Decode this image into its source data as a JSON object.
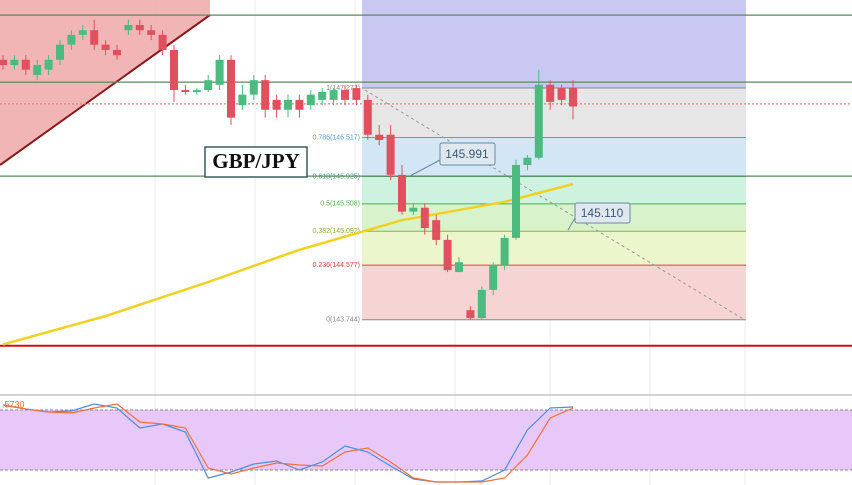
{
  "chart_data": {
    "type": "candlestick",
    "title": "GBP/JPY",
    "annotations": [
      "145.991",
      "145.110"
    ],
    "ylim": [
      142.6,
      148.61
    ],
    "up_color": "#4cbb80",
    "down_color": "#e0505e",
    "candles": {
      "open": [
        147.7,
        147.62,
        147.7,
        147.47,
        147.55,
        147.7,
        147.93,
        148.08,
        148.15,
        147.93,
        147.85,
        148.15,
        148.23,
        148.15,
        148.08,
        147.85,
        147.24,
        147.21,
        147.24,
        147.32,
        147.7,
        147.01,
        147.17,
        147.39,
        147.09,
        146.94,
        147.09,
        147.01,
        147.09,
        147.09,
        147.24,
        147.27,
        147.09,
        146.56,
        146.56,
        145.95,
        145.39,
        145.45,
        145.26,
        144.96,
        144.47,
        143.89,
        143.77,
        144.2,
        144.58,
        144.99,
        146.1,
        146.21,
        147.32,
        147.27,
        147.27
      ],
      "high": [
        147.77,
        147.77,
        147.77,
        147.7,
        147.77,
        148.0,
        148.15,
        148.23,
        148.31,
        148.0,
        147.93,
        148.31,
        148.31,
        148.23,
        148.15,
        147.93,
        147.32,
        147.27,
        147.47,
        147.77,
        147.77,
        147.32,
        147.47,
        147.47,
        147.17,
        147.17,
        147.17,
        147.24,
        147.27,
        147.27,
        147.32,
        147.32,
        147.17,
        146.71,
        146.71,
        146.1,
        145.52,
        145.52,
        145.34,
        145.04,
        144.7,
        143.95,
        144.25,
        144.62,
        145.04,
        146.18,
        146.25,
        147.55,
        147.39,
        147.32,
        147.39
      ],
      "low": [
        147.55,
        147.55,
        147.47,
        147.39,
        147.47,
        147.62,
        147.85,
        148.0,
        147.85,
        147.77,
        147.7,
        148.08,
        148.08,
        148.0,
        147.77,
        147.06,
        147.17,
        147.17,
        147.21,
        147.24,
        146.71,
        146.94,
        147.09,
        146.82,
        146.82,
        146.82,
        146.82,
        146.94,
        147.01,
        147.01,
        147.01,
        147.01,
        146.48,
        146.4,
        145.87,
        145.34,
        145.34,
        145.04,
        144.88,
        144.47,
        144.47,
        143.74,
        143.74,
        144.12,
        144.5,
        144.96,
        146.02,
        146.18,
        146.94,
        147.01,
        146.79
      ],
      "close": [
        147.62,
        147.7,
        147.55,
        147.62,
        147.7,
        147.93,
        148.08,
        148.15,
        147.93,
        147.85,
        147.77,
        148.23,
        148.15,
        148.08,
        147.85,
        147.24,
        147.21,
        147.24,
        147.39,
        147.7,
        146.82,
        147.17,
        147.39,
        146.94,
        146.94,
        147.09,
        146.94,
        147.17,
        147.21,
        147.24,
        147.09,
        147.09,
        146.56,
        146.48,
        145.95,
        145.39,
        145.45,
        145.14,
        144.96,
        144.5,
        144.62,
        143.77,
        144.2,
        144.58,
        144.99,
        146.1,
        146.21,
        147.32,
        147.06,
        147.09,
        146.99
      ]
    },
    "fib_levels": [
      {
        "value": 147.272,
        "label": "1(147.272)",
        "color": "#888888",
        "fill": "#e6e6e6"
      },
      {
        "value": 146.517,
        "label": "0.786(146.517)",
        "color": "#5aa0d8",
        "fill": "#d2e6f6"
      },
      {
        "value": 145.925,
        "label": "0.618(145.925)",
        "color": "#40b080",
        "fill": "#cdf2e0"
      },
      {
        "value": 145.508,
        "label": "0.5(145.508)",
        "color": "#50b050",
        "fill": "#d8f3cc"
      },
      {
        "value": 145.092,
        "label": "0.382(145.092)",
        "color": "#90b030",
        "fill": "#ecf6cc"
      },
      {
        "value": 144.577,
        "label": "0.236(144.577)",
        "color": "#e04040",
        "fill": "#f6d4d4"
      },
      {
        "value": 143.744,
        "label": "0(143.744)",
        "color": "#888888",
        "fill": "#f6d4d4"
      }
    ],
    "levels": [
      {
        "value": 148.38,
        "color": "#5a8a5a"
      },
      {
        "value": 147.36,
        "color": "#5a8a5a"
      },
      {
        "value": 145.93,
        "color": "#5a8a5a"
      },
      {
        "value": 147.03,
        "color": "#e88080"
      },
      {
        "value": 143.35,
        "color": "#d01010"
      }
    ],
    "ma": {
      "color": "#f2d020",
      "x": [
        0,
        9,
        18,
        26,
        35,
        44,
        50
      ],
      "values": [
        143.37,
        143.8,
        144.32,
        144.81,
        145.26,
        145.54,
        145.81
      ]
    },
    "oscillator": {
      "label": ".5730",
      "ylim": [
        5,
        95
      ],
      "band": [
        20,
        80
      ],
      "x": [
        0,
        2,
        4,
        6,
        8,
        10,
        12,
        14,
        16,
        18,
        20,
        22,
        24,
        26,
        28,
        30,
        32,
        34,
        36,
        38,
        40,
        42,
        44,
        46,
        48,
        50
      ],
      "series": [
        {
          "color": "#4a90e0",
          "values": [
            85,
            81,
            78,
            79,
            86,
            82,
            62,
            66,
            58,
            12,
            18,
            26,
            29,
            20,
            28,
            44,
            38,
            24,
            11,
            8,
            8,
            9,
            20,
            60,
            82,
            83
          ]
        },
        {
          "color": "#f07040",
          "values": [
            85,
            81,
            78,
            77,
            82,
            86,
            68,
            66,
            62,
            22,
            16,
            22,
            27,
            25,
            24,
            38,
            42,
            28,
            12,
            8,
            8,
            8,
            12,
            35,
            72,
            82
          ]
        }
      ]
    }
  }
}
